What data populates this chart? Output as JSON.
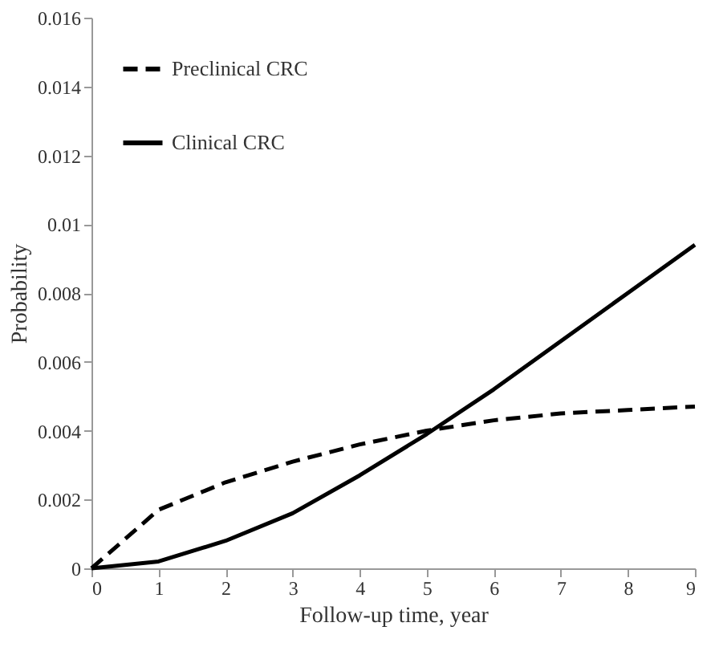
{
  "chart_data": {
    "type": "line",
    "xlabel": "Follow-up time, year",
    "ylabel": "Probability",
    "x": [
      0,
      1,
      2,
      3,
      4,
      5,
      6,
      7,
      8,
      9
    ],
    "series": [
      {
        "name": "Preclinical CRC",
        "color": "#000000",
        "line_style": "dashed",
        "values": [
          0,
          0.0017,
          0.0025,
          0.0031,
          0.0036,
          0.004,
          0.0043,
          0.0045,
          0.0046,
          0.0047
        ]
      },
      {
        "name": "Clinical CRC",
        "color": "#000000",
        "line_style": "solid",
        "values": [
          0,
          0.0002,
          0.0008,
          0.0016,
          0.0027,
          0.0039,
          0.0052,
          0.0066,
          0.008,
          0.0094
        ]
      }
    ],
    "xlim": [
      0,
      9
    ],
    "xticks": [
      0,
      1,
      2,
      3,
      4,
      5,
      6,
      7,
      8,
      9
    ],
    "ylim": [
      0,
      0.016
    ],
    "yticks": [
      0,
      0.002,
      0.004,
      0.006,
      0.008,
      0.01,
      0.012,
      0.014,
      0.016
    ],
    "grid": false,
    "legend": "top left",
    "marker": "none"
  }
}
